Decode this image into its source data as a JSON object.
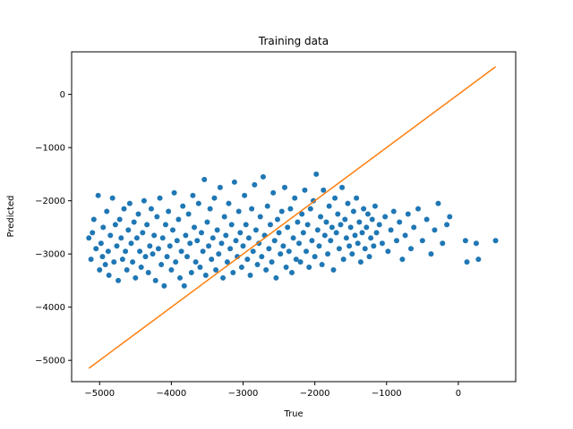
{
  "chart_data": {
    "type": "scatter",
    "title": "Training data",
    "xlabel": "True",
    "ylabel": "Predicted",
    "xlim": [
      -5390,
      800
    ],
    "ylim": [
      -5400,
      800
    ],
    "grid": false,
    "xticks": [
      -5000,
      -4000,
      -3000,
      -2000,
      -1000,
      0
    ],
    "yticks": [
      0,
      -1000,
      -2000,
      -3000,
      -4000,
      -5000
    ],
    "colors": {
      "points": "#1f77b4",
      "line": "#ff7f0e"
    },
    "series": [
      {
        "type": "scatter",
        "points_approx": [
          [
            -5150,
            -2700
          ],
          [
            -5120,
            -3100
          ],
          [
            -5100,
            -2600
          ],
          [
            -5080,
            -2350
          ],
          [
            -5050,
            -2900
          ],
          [
            -5020,
            -1900
          ],
          [
            -5000,
            -3300
          ],
          [
            -4980,
            -2800
          ],
          [
            -4960,
            -3050
          ],
          [
            -4950,
            -2500
          ],
          [
            -4920,
            -3200
          ],
          [
            -4900,
            -2200
          ],
          [
            -4880,
            -2950
          ],
          [
            -4870,
            -3400
          ],
          [
            -4850,
            -2650
          ],
          [
            -4820,
            -1950
          ],
          [
            -4800,
            -3150
          ],
          [
            -4780,
            -2450
          ],
          [
            -4760,
            -2850
          ],
          [
            -4740,
            -3500
          ],
          [
            -4720,
            -2350
          ],
          [
            -4700,
            -2700
          ],
          [
            -4680,
            -3100
          ],
          [
            -4660,
            -2150
          ],
          [
            -4640,
            -2950
          ],
          [
            -4620,
            -3300
          ],
          [
            -4600,
            -2550
          ],
          [
            -4580,
            -2050
          ],
          [
            -4560,
            -2800
          ],
          [
            -4540,
            -3150
          ],
          [
            -4520,
            -2400
          ],
          [
            -4500,
            -3450
          ],
          [
            -4480,
            -2700
          ],
          [
            -4460,
            -2250
          ],
          [
            -4440,
            -2950
          ],
          [
            -4420,
            -3250
          ],
          [
            -4400,
            -2600
          ],
          [
            -4380,
            -2000
          ],
          [
            -4360,
            -3050
          ],
          [
            -4340,
            -2450
          ],
          [
            -4320,
            -3350
          ],
          [
            -4300,
            -2850
          ],
          [
            -4280,
            -2150
          ],
          [
            -4260,
            -3000
          ],
          [
            -4240,
            -2650
          ],
          [
            -4220,
            -3500
          ],
          [
            -4200,
            -2300
          ],
          [
            -4180,
            -2900
          ],
          [
            -4160,
            -1950
          ],
          [
            -4140,
            -3200
          ],
          [
            -4120,
            -2700
          ],
          [
            -4100,
            -3600
          ],
          [
            -4080,
            -2450
          ],
          [
            -4060,
            -3050
          ],
          [
            -4040,
            -2200
          ],
          [
            -4020,
            -2850
          ],
          [
            -4000,
            -3300
          ],
          [
            -3980,
            -2550
          ],
          [
            -3960,
            -1850
          ],
          [
            -3940,
            -3150
          ],
          [
            -3920,
            -2750
          ],
          [
            -3900,
            -2350
          ],
          [
            -3880,
            -3450
          ],
          [
            -3860,
            -2950
          ],
          [
            -3840,
            -2100
          ],
          [
            -3820,
            -3600
          ],
          [
            -3800,
            -2650
          ],
          [
            -3780,
            -3050
          ],
          [
            -3760,
            -2250
          ],
          [
            -3740,
            -2800
          ],
          [
            -3720,
            -3350
          ],
          [
            -3700,
            -1900
          ],
          [
            -3680,
            -2500
          ],
          [
            -3660,
            -3150
          ],
          [
            -3640,
            -2750
          ],
          [
            -3620,
            -2050
          ],
          [
            -3600,
            -3250
          ],
          [
            -3580,
            -2600
          ],
          [
            -3560,
            -2950
          ],
          [
            -3540,
            -1600
          ],
          [
            -3520,
            -3400
          ],
          [
            -3500,
            -2400
          ],
          [
            -3480,
            -2850
          ],
          [
            -3460,
            -2150
          ],
          [
            -3440,
            -3100
          ],
          [
            -3420,
            -2700
          ],
          [
            -3400,
            -1950
          ],
          [
            -3380,
            -3300
          ],
          [
            -3360,
            -2550
          ],
          [
            -3340,
            -3000
          ],
          [
            -3320,
            -1750
          ],
          [
            -3300,
            -2800
          ],
          [
            -3280,
            -3450
          ],
          [
            -3260,
            -2300
          ],
          [
            -3240,
            -2650
          ],
          [
            -3220,
            -3150
          ],
          [
            -3200,
            -2050
          ],
          [
            -3180,
            -2900
          ],
          [
            -3160,
            -2450
          ],
          [
            -3140,
            -3350
          ],
          [
            -3120,
            -1650
          ],
          [
            -3100,
            -2750
          ],
          [
            -3080,
            -3050
          ],
          [
            -3060,
            -2200
          ],
          [
            -3040,
            -2600
          ],
          [
            -3020,
            -3250
          ],
          [
            -3000,
            -2850
          ],
          [
            -2980,
            -1900
          ],
          [
            -2960,
            -2450
          ],
          [
            -2940,
            -3100
          ],
          [
            -2920,
            -2700
          ],
          [
            -2900,
            -3400
          ],
          [
            -2880,
            -2150
          ],
          [
            -2860,
            -2950
          ],
          [
            -2840,
            -1700
          ],
          [
            -2820,
            -2550
          ],
          [
            -2800,
            -3200
          ],
          [
            -2780,
            -2800
          ],
          [
            -2760,
            -2300
          ],
          [
            -2740,
            -3050
          ],
          [
            -2720,
            -1550
          ],
          [
            -2700,
            -2650
          ],
          [
            -2680,
            -3300
          ],
          [
            -2660,
            -2100
          ],
          [
            -2640,
            -2900
          ],
          [
            -2620,
            -2450
          ],
          [
            -2600,
            -3150
          ],
          [
            -2580,
            -1850
          ],
          [
            -2560,
            -2750
          ],
          [
            -2540,
            -3450
          ],
          [
            -2520,
            -2350
          ],
          [
            -2500,
            -2600
          ],
          [
            -2480,
            -3000
          ],
          [
            -2460,
            -2200
          ],
          [
            -2440,
            -2850
          ],
          [
            -2420,
            -1750
          ],
          [
            -2400,
            -3250
          ],
          [
            -2380,
            -2500
          ],
          [
            -2360,
            -2950
          ],
          [
            -2340,
            -2150
          ],
          [
            -2320,
            -3350
          ],
          [
            -2300,
            -2700
          ],
          [
            -2280,
            -1950
          ],
          [
            -2260,
            -3100
          ],
          [
            -2240,
            -2400
          ],
          [
            -2220,
            -2800
          ],
          [
            -2200,
            -3150
          ],
          [
            -2180,
            -2250
          ],
          [
            -2160,
            -2600
          ],
          [
            -2140,
            -1800
          ],
          [
            -2120,
            -2950
          ],
          [
            -2100,
            -2450
          ],
          [
            -2080,
            -3250
          ],
          [
            -2060,
            -2150
          ],
          [
            -2040,
            -2750
          ],
          [
            -2020,
            -2000
          ],
          [
            -2000,
            -3050
          ],
          [
            -1980,
            -1500
          ],
          [
            -1960,
            -2550
          ],
          [
            -1940,
            -2850
          ],
          [
            -1920,
            -2300
          ],
          [
            -1900,
            -3200
          ],
          [
            -1880,
            -1800
          ],
          [
            -1860,
            -2650
          ],
          [
            -1840,
            -2400
          ],
          [
            -1820,
            -3000
          ],
          [
            -1800,
            -2100
          ],
          [
            -1780,
            -2750
          ],
          [
            -1760,
            -2500
          ],
          [
            -1740,
            -3300
          ],
          [
            -1720,
            -1950
          ],
          [
            -1700,
            -2600
          ],
          [
            -1680,
            -2250
          ],
          [
            -1660,
            -2900
          ],
          [
            -1640,
            -2450
          ],
          [
            -1620,
            -1750
          ],
          [
            -1600,
            -3100
          ],
          [
            -1580,
            -2350
          ],
          [
            -1560,
            -2700
          ],
          [
            -1540,
            -2050
          ],
          [
            -1520,
            -2850
          ],
          [
            -1500,
            -2500
          ],
          [
            -1480,
            -3000
          ],
          [
            -1460,
            -2200
          ],
          [
            -1440,
            -2650
          ],
          [
            -1420,
            -1950
          ],
          [
            -1400,
            -2800
          ],
          [
            -1380,
            -2400
          ],
          [
            -1360,
            -3150
          ],
          [
            -1340,
            -2600
          ],
          [
            -1320,
            -2150
          ],
          [
            -1300,
            -2900
          ],
          [
            -1280,
            -2500
          ],
          [
            -1260,
            -2250
          ],
          [
            -1240,
            -3050
          ],
          [
            -1220,
            -2700
          ],
          [
            -1200,
            -2350
          ],
          [
            -1180,
            -2850
          ],
          [
            -1160,
            -2100
          ],
          [
            -1140,
            -2600
          ],
          [
            -1100,
            -2450
          ],
          [
            -1060,
            -2800
          ],
          [
            -1020,
            -2300
          ],
          [
            -980,
            -2950
          ],
          [
            -940,
            -2550
          ],
          [
            -900,
            -2200
          ],
          [
            -860,
            -2750
          ],
          [
            -820,
            -2400
          ],
          [
            -780,
            -3100
          ],
          [
            -740,
            -2650
          ],
          [
            -700,
            -2250
          ],
          [
            -660,
            -2900
          ],
          [
            -620,
            -2500
          ],
          [
            -560,
            -2150
          ],
          [
            -500,
            -2750
          ],
          [
            -440,
            -2350
          ],
          [
            -380,
            -3000
          ],
          [
            -330,
            -2550
          ],
          [
            -280,
            -2050
          ],
          [
            -220,
            -2800
          ],
          [
            -160,
            -2450
          ],
          [
            -120,
            -2300
          ],
          [
            100,
            -2750
          ],
          [
            120,
            -3150
          ],
          [
            250,
            -2800
          ],
          [
            280,
            -3100
          ],
          [
            520,
            -2750
          ]
        ]
      },
      {
        "type": "line",
        "x": [
          -5150,
          520
        ],
        "y": [
          -5150,
          520
        ]
      }
    ]
  }
}
